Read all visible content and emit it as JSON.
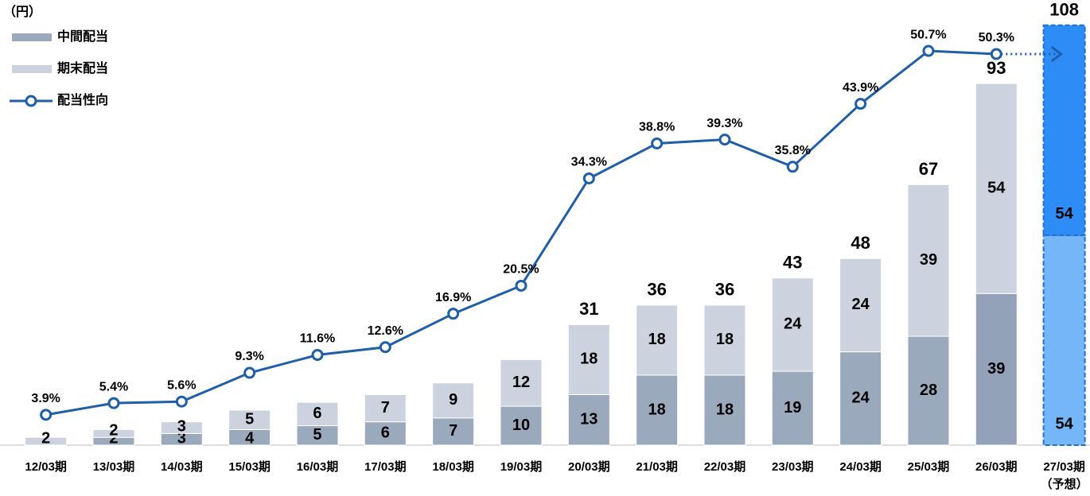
{
  "chart_data": {
    "type": "bar",
    "unit_label": "（円）",
    "categories": [
      "12/03期",
      "13/03期",
      "14/03期",
      "15/03期",
      "16/03期",
      "17/03期",
      "18/03期",
      "19/03期",
      "20/03期",
      "21/03期",
      "22/03期",
      "23/03期",
      "24/03期",
      "25/03期",
      "26/03期",
      "27/03期"
    ],
    "forecast_note": "（予想）",
    "series": [
      {
        "name": "中間配当",
        "type": "bar",
        "colors": [
          "#9ba9bd",
          "#9ba9bd",
          "#9ba9bd",
          "#9ba9bd",
          "#9ba9bd",
          "#9ba9bd",
          "#9ba9bd",
          "#9ba9bd",
          "#9ba9bd",
          "#9ba9bd",
          "#9ba9bd",
          "#9ba9bd",
          "#9ba9bd",
          "#9ba9bd",
          "#93a2b8",
          "#74b6f7"
        ],
        "values": [
          null,
          2,
          3,
          4,
          5,
          6,
          7,
          10,
          13,
          18,
          18,
          19,
          24,
          28,
          39,
          54
        ]
      },
      {
        "name": "期末配当",
        "type": "bar",
        "colors": [
          "#ccd3de",
          "#ccd3de",
          "#ccd3de",
          "#ccd3de",
          "#ccd3de",
          "#ccd3de",
          "#ccd3de",
          "#ccd3de",
          "#ccd3de",
          "#ccd3de",
          "#ccd3de",
          "#ccd3de",
          "#ccd3de",
          "#ccd3de",
          "#ccd3de",
          "#2e8cf6"
        ],
        "values": [
          2,
          2,
          3,
          5,
          6,
          7,
          9,
          12,
          18,
          18,
          18,
          24,
          24,
          39,
          54,
          54
        ]
      },
      {
        "name": "配当性向",
        "type": "line",
        "axis": "y2",
        "color": "#1f5ea8",
        "values": [
          3.9,
          5.4,
          5.6,
          9.3,
          11.6,
          12.6,
          16.9,
          20.5,
          34.3,
          38.8,
          39.3,
          35.8,
          43.9,
          50.7,
          50.3,
          null
        ],
        "value_labels": [
          "3.9%",
          "5.4%",
          "5.6%",
          "9.3%",
          "11.6%",
          "12.6%",
          "16.9%",
          "20.5%",
          "34.3%",
          "38.8%",
          "39.3%",
          "35.8%",
          "43.9%",
          "50.7%",
          "50.3%",
          null
        ]
      }
    ],
    "totals": [
      null,
      null,
      null,
      null,
      null,
      null,
      null,
      null,
      31,
      36,
      36,
      43,
      48,
      67,
      93,
      108
    ],
    "ylim": [
      0,
      110
    ],
    "y2lim": [
      0,
      55
    ]
  }
}
